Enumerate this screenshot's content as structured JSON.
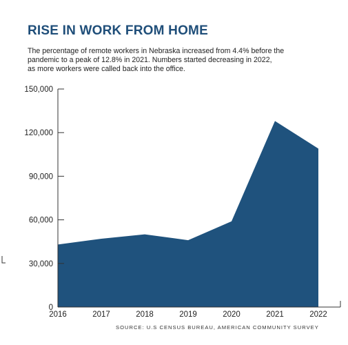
{
  "header": {
    "title": "RISE IN WORK FROM HOME",
    "subtitle_lines": [
      "The percentage of remote workers in Nebraska increased from 4.4% before the",
      "pandemic to a peak of 12.8% in 2021. Numbers started decreasing in 2022,",
      "as more workers were called back into the office."
    ]
  },
  "chart_data": {
    "type": "area",
    "title": "RISE IN WORK FROM HOME",
    "x": [
      "2016",
      "2017",
      "2018",
      "2019",
      "2020",
      "2021",
      "2022"
    ],
    "series": [
      {
        "values": [
          43000,
          47000,
          50000,
          46000,
          59000,
          128000,
          109000
        ]
      }
    ],
    "y_ticks": [
      "0",
      "30,000",
      "60,000",
      "90,000",
      "120,000",
      "150,000"
    ],
    "ylim": [
      0,
      150000
    ],
    "xlabel": "",
    "ylabel": "",
    "grid": false,
    "fill_color": "#1f527d"
  },
  "footer": {
    "source": "SOURCE: U.S CENSUS BUREAU, AMERICAN COMMUNITY SURVEY"
  }
}
